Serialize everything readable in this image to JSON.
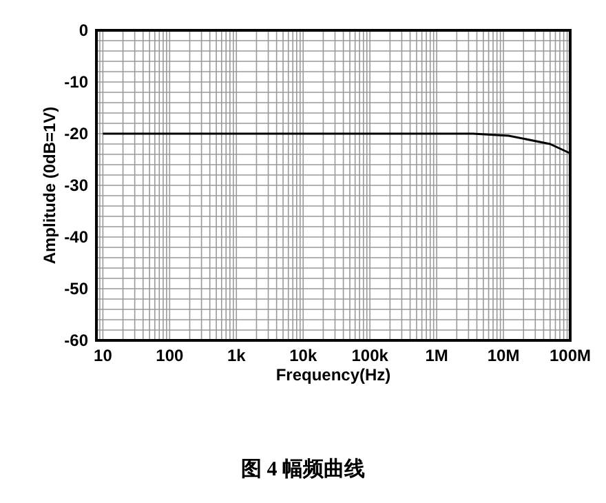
{
  "chart_data": {
    "type": "line",
    "xlabel": "Frequency(Hz)",
    "ylabel": "Amplitude (0dB=1V)",
    "annotations": [
      "图 4 幅频曲线"
    ],
    "log": "x",
    "x": [
      10,
      1000000,
      3500000,
      12000000,
      50000000,
      100000000
    ],
    "series": [
      {
        "color": "#000000",
        "values": [
          -20,
          -20,
          -20,
          -20.4,
          -22,
          -23.8
        ]
      }
    ],
    "xlim": [
      8,
      100000000
    ],
    "xticks": [
      10,
      100,
      {
        "value": 1000,
        "label": "1k"
      },
      {
        "value": 10000,
        "label": "10k"
      },
      {
        "value": 100000,
        "label": "100k"
      },
      {
        "value": 1000000,
        "label": "1M"
      },
      {
        "value": 10000000,
        "label": "10M"
      },
      {
        "value": 100000000,
        "label": "100M"
      }
    ],
    "ylim": [
      -60,
      0
    ],
    "yticks": [
      -60,
      -50,
      -40,
      -30,
      -20,
      -10,
      0
    ],
    "grid": true,
    "marker": "none",
    "line_style": "solid"
  }
}
